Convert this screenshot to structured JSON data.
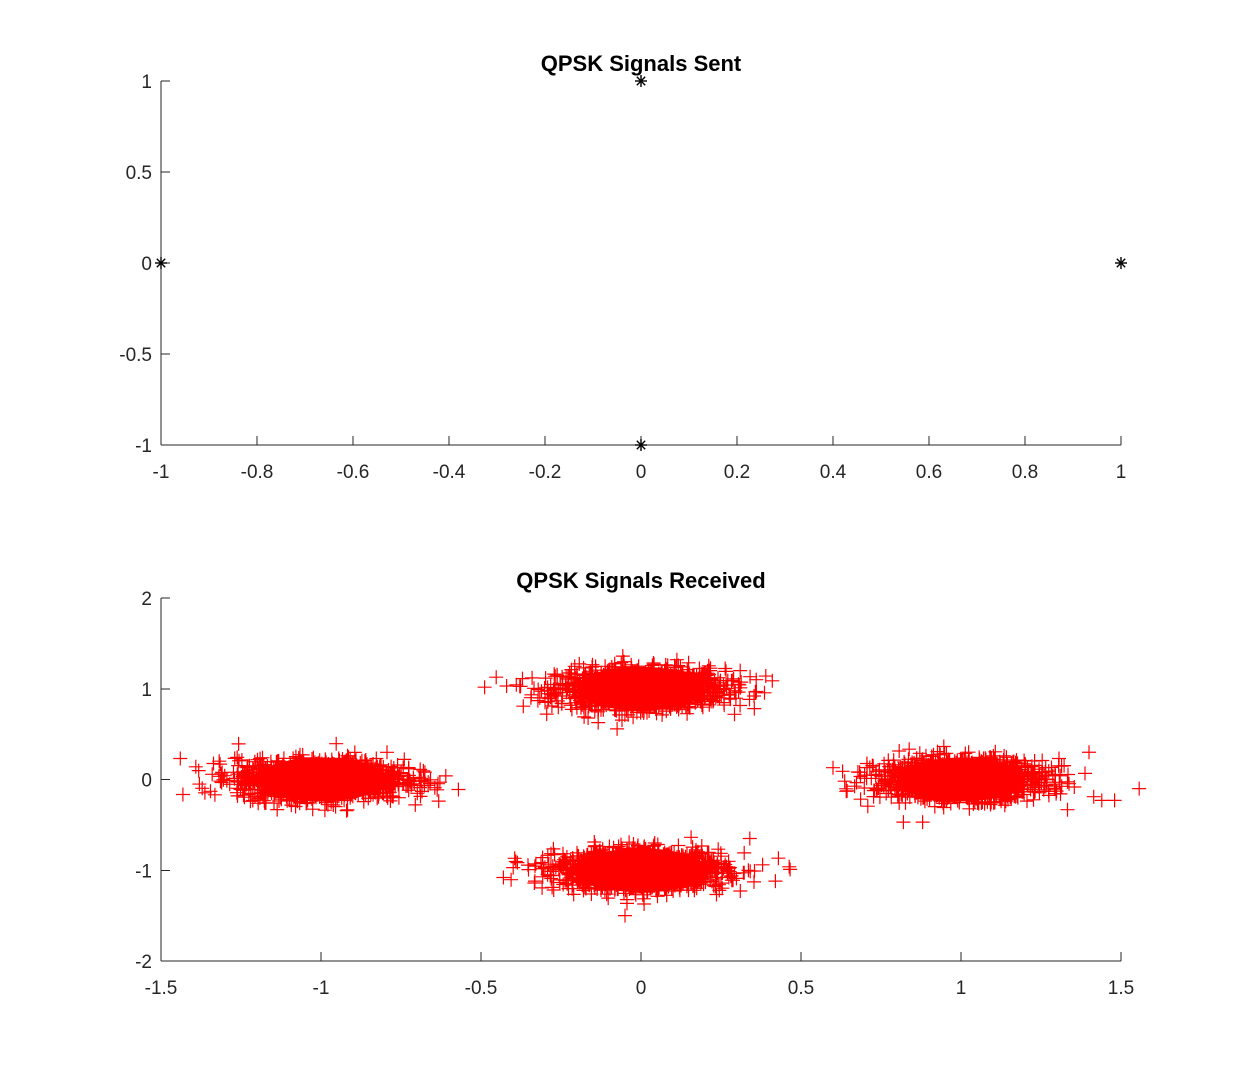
{
  "chart_data": [
    {
      "type": "scatter",
      "title": "QPSK Signals Sent",
      "xlabel": "",
      "ylabel": "",
      "xlim": [
        -1,
        1
      ],
      "ylim": [
        -1,
        1
      ],
      "xticks": [
        -1,
        -0.8,
        -0.6,
        -0.4,
        -0.2,
        0,
        0.2,
        0.4,
        0.6,
        0.8,
        1
      ],
      "xtick_labels": [
        "-1",
        "-0.8",
        "-0.6",
        "-0.4",
        "-0.2",
        "0",
        "0.2",
        "0.4",
        "0.6",
        "0.8",
        "1"
      ],
      "yticks": [
        -1,
        -0.5,
        0,
        0.5,
        1
      ],
      "ytick_labels": [
        "-1",
        "-0.5",
        "0",
        "0.5",
        "1"
      ],
      "grid": false,
      "marker": "asterisk",
      "color": "#000000",
      "series": [
        {
          "x": [
            0,
            -1,
            1,
            0
          ],
          "y": [
            1,
            0,
            0,
            -1
          ]
        }
      ]
    },
    {
      "type": "scatter",
      "title": "QPSK Signals Received",
      "xlabel": "",
      "ylabel": "",
      "xlim": [
        -1.5,
        1.5
      ],
      "ylim": [
        -2,
        2
      ],
      "xticks": [
        -1.5,
        -1,
        -0.5,
        0,
        0.5,
        1,
        1.5
      ],
      "xtick_labels": [
        "-1.5",
        "-1",
        "-0.5",
        "0",
        "0.5",
        "1",
        "1.5"
      ],
      "yticks": [
        -2,
        -1,
        0,
        1,
        2
      ],
      "ytick_labels": [
        "-2",
        "-1",
        "0",
        "1",
        "2"
      ],
      "grid": false,
      "marker": "plus",
      "color": "#ff0000",
      "clusters": [
        {
          "center": [
            0,
            1
          ],
          "spread_x": 0.13,
          "spread_y": 0.11
        },
        {
          "center": [
            -1,
            0
          ],
          "spread_x": 0.13,
          "spread_y": 0.11
        },
        {
          "center": [
            1,
            0
          ],
          "spread_x": 0.13,
          "spread_y": 0.11
        },
        {
          "center": [
            0,
            -1
          ],
          "spread_x": 0.13,
          "spread_y": 0.11
        }
      ],
      "outliers": {
        "x": [
          -0.43,
          0.42,
          0.39,
          0.38,
          -0.42,
          0.36,
          0.6,
          1.44,
          1.48,
          1.4,
          0.82,
          0.88,
          0.63,
          -0.05,
          0.31,
          0.34,
          -0.61,
          -1.38,
          -0.3,
          0.26
        ],
        "y": [
          -1.08,
          -1.12,
          1.14,
          -0.94,
          1.03,
          1.1,
          0.13,
          -0.23,
          -0.23,
          0.3,
          -0.47,
          -0.47,
          0.09,
          -1.5,
          1.2,
          -0.65,
          0.04,
          -0.05,
          0.85,
          0.82
        ]
      }
    }
  ]
}
